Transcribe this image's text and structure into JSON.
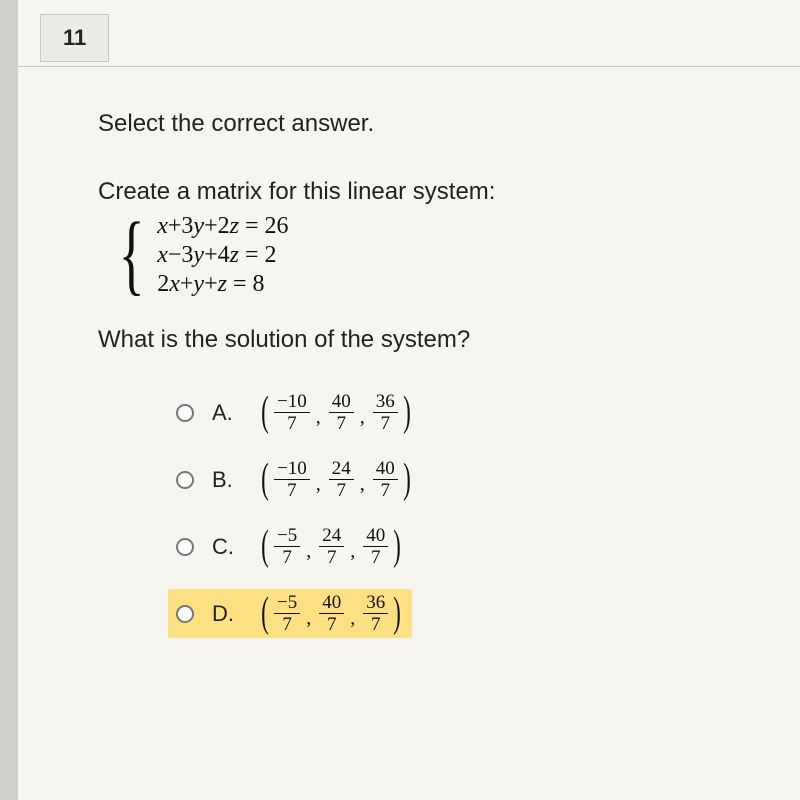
{
  "question_number": "11",
  "instruction": "Select the correct answer.",
  "prompt": "Create a matrix for this linear system:",
  "equations": {
    "e1": "x+3y+2z = 26",
    "e2": "x−3y+4z = 2",
    "e3": "2x+y+z = 8"
  },
  "subquestion": "What is the solution of the system?",
  "options": {
    "a": {
      "letter": "A.",
      "f1_top": "−10",
      "f1_bot": "7",
      "f2_top": "40",
      "f2_bot": "7",
      "f3_top": "36",
      "f3_bot": "7",
      "highlighted": false
    },
    "b": {
      "letter": "B.",
      "f1_top": "−10",
      "f1_bot": "7",
      "f2_top": "24",
      "f2_bot": "7",
      "f3_top": "40",
      "f3_bot": "7",
      "highlighted": false
    },
    "c": {
      "letter": "C.",
      "f1_top": "−5",
      "f1_bot": "7",
      "f2_top": "24",
      "f2_bot": "7",
      "f3_top": "40",
      "f3_bot": "7",
      "highlighted": false
    },
    "d": {
      "letter": "D.",
      "f1_top": "−5",
      "f1_bot": "7",
      "f2_top": "40",
      "f2_bot": "7",
      "f3_top": "36",
      "f3_bot": "7",
      "highlighted": true
    }
  },
  "colors": {
    "page_bg": "#f7f5ef",
    "outer_bg": "#e8e6e0",
    "highlight": "#ffe082",
    "border": "#c9c7c0",
    "text": "#222222"
  }
}
